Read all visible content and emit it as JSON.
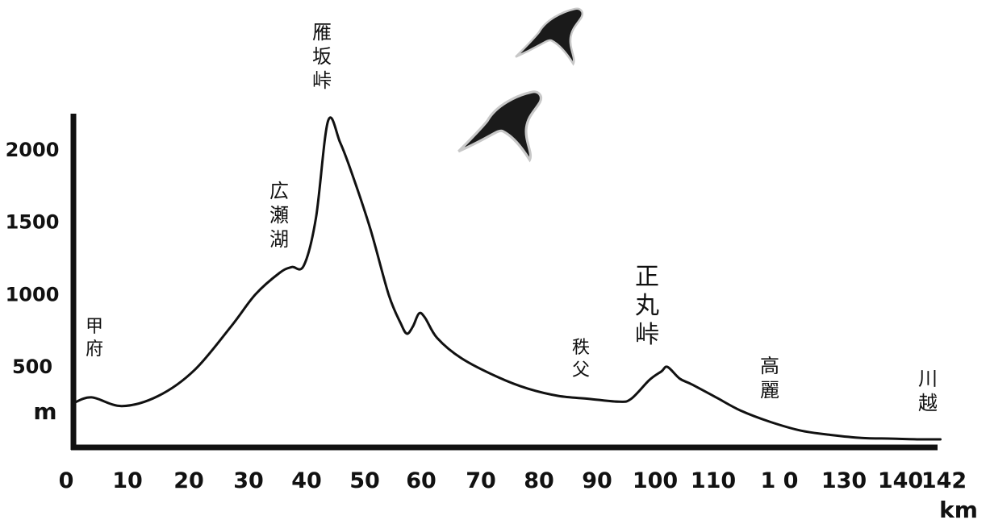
{
  "chart_data": {
    "type": "area",
    "title": "",
    "xlabel": "km",
    "ylabel": "m",
    "xlim": [
      0,
      142
    ],
    "ylim": [
      0,
      2250
    ],
    "x_ticks": [
      "0",
      "10",
      "20",
      "30",
      "40",
      "50",
      "60",
      "70",
      "80",
      "90",
      "100",
      "110",
      "1 0",
      "130",
      "140",
      "142"
    ],
    "y_ticks": [
      "500",
      "1000",
      "1500",
      "2000"
    ],
    "grid": false,
    "legend": "none",
    "series": [
      {
        "x": [
          0,
          3,
          8,
          14,
          20,
          26,
          30,
          34,
          36,
          38,
          40,
          42,
          44,
          46,
          49,
          52,
          54,
          55,
          56,
          57,
          58,
          60,
          64,
          70,
          75,
          80,
          85,
          90,
          92,
          95,
          97,
          98,
          100,
          102,
          106,
          110,
          115,
          120,
          125,
          130,
          135,
          140,
          143
        ],
        "y": [
          250,
          290,
          230,
          300,
          480,
          780,
          1000,
          1150,
          1190,
          1200,
          1530,
          2200,
          2050,
          1830,
          1450,
          1000,
          800,
          730,
          780,
          870,
          840,
          700,
          560,
          430,
          350,
          300,
          280,
          260,
          280,
          410,
          470,
          500,
          420,
          380,
          290,
          200,
          120,
          60,
          30,
          10,
          5,
          0,
          0
        ]
      }
    ],
    "annotations": [
      {
        "text": "甲府",
        "x": 3,
        "y": 290
      },
      {
        "text": "広瀬湖",
        "x": 36,
        "y": 1190
      },
      {
        "text": "雁坂峠",
        "x": 42,
        "y": 2200
      },
      {
        "text": "秩父",
        "x": 87,
        "y": 280
      },
      {
        "text": "正丸峠",
        "x": 98,
        "y": 500
      },
      {
        "text": "高麗",
        "x": 117,
        "y": 100
      },
      {
        "text": "川越",
        "x": 141,
        "y": 0
      }
    ],
    "colors": {
      "line": "#111111",
      "axis": "#111111",
      "bird": "#1a1a1a",
      "bird_outline": "#c8c8c8"
    },
    "decorations": [
      "bird-silhouette",
      "bird-silhouette"
    ]
  }
}
